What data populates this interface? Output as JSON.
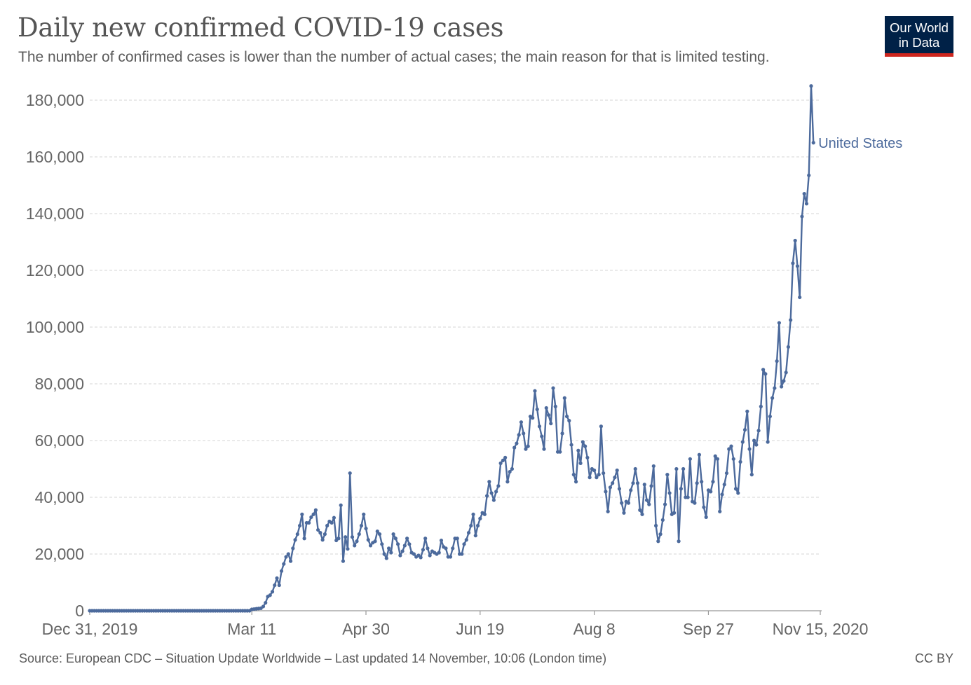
{
  "header": {
    "title": "Daily new confirmed COVID-19 cases",
    "subtitle": "The number of confirmed cases is lower than the number of actual cases; the main reason for that is limited testing."
  },
  "logo": {
    "line1": "Our World",
    "line2": "in Data"
  },
  "footer": {
    "source": "Source: European CDC – Situation Update Worldwide – Last updated 14 November, 10:06 (London time)",
    "license": "CC BY"
  },
  "colors": {
    "series": "#4c6a9c",
    "grid": "#dddddd",
    "logo_bg": "#002147",
    "logo_accent": "#ce261e"
  },
  "chart_data": {
    "type": "line",
    "title": "Daily new confirmed COVID-19 cases",
    "subtitle": "The number of confirmed cases is lower than the number of actual cases; the main reason for that is limited testing.",
    "x_ticks": [
      "Dec 31, 2019",
      "Mar 11",
      "Apr 30",
      "Jun 19",
      "Aug 8",
      "Sep 27",
      "Nov 15, 2020"
    ],
    "x_tick_days": [
      0,
      71,
      121,
      171,
      221,
      271,
      320
    ],
    "y_ticks": [
      0,
      20000,
      40000,
      60000,
      80000,
      100000,
      120000,
      140000,
      160000,
      180000
    ],
    "y_tick_labels": [
      "0",
      "20,000",
      "40,000",
      "60,000",
      "80,000",
      "100,000",
      "120,000",
      "140,000",
      "160,000",
      "180,000"
    ],
    "ylim": [
      0,
      180000
    ],
    "grid": "horizontal dashed",
    "legend": "inline label at line end",
    "series": [
      {
        "name": "United States",
        "x_start": "Dec 31, 2019",
        "x_end": "Nov 14, 2020",
        "values": [
          0,
          0,
          0,
          0,
          0,
          0,
          0,
          0,
          0,
          0,
          0,
          0,
          0,
          0,
          0,
          0,
          0,
          0,
          0,
          0,
          0,
          0,
          1,
          0,
          1,
          1,
          1,
          1,
          1,
          1,
          2,
          1,
          0,
          0,
          0,
          0,
          1,
          0,
          0,
          0,
          0,
          0,
          0,
          0,
          0,
          0,
          0,
          0,
          0,
          0,
          0,
          0,
          0,
          0,
          0,
          0,
          0,
          0,
          0,
          0,
          0,
          0,
          0,
          0,
          0,
          0,
          0,
          0,
          0,
          0,
          0,
          500,
          600,
          700,
          800,
          900,
          1500,
          2800,
          5000,
          5500,
          6700,
          9000,
          11500,
          9000,
          14000,
          16500,
          19000,
          20000,
          17500,
          22000,
          25000,
          27000,
          30000,
          34000,
          25500,
          31000,
          31000,
          33000,
          34000,
          35500,
          28500,
          27500,
          25000,
          27000,
          30000,
          31500,
          31000,
          32800,
          24800,
          25500,
          37200,
          17500,
          26000,
          21800,
          48500,
          26000,
          23000,
          24500,
          27000,
          30000,
          34000,
          29000,
          25000,
          23000,
          24000,
          24500,
          28000,
          27000,
          23500,
          20000,
          18500,
          22000,
          20500,
          27000,
          25500,
          23500,
          19500,
          21000,
          23000,
          25500,
          23500,
          20500,
          20000,
          19000,
          19500,
          18800,
          21500,
          25500,
          22000,
          19500,
          21000,
          20500,
          20000,
          20500,
          24800,
          22500,
          22000,
          19000,
          19000,
          22000,
          25500,
          25500,
          20000,
          20000,
          23500,
          25000,
          27500,
          30000,
          34000,
          26500,
          30000,
          32500,
          34500,
          34000,
          40500,
          45500,
          41500,
          39000,
          42000,
          44000,
          52000,
          53000,
          54000,
          45500,
          49000,
          50000,
          57500,
          59000,
          62000,
          66500,
          62500,
          57000,
          58000,
          68500,
          68000,
          77500,
          71000,
          65000,
          61500,
          57000,
          71500,
          69000,
          66000,
          78500,
          72000,
          56000,
          56000,
          62500,
          75000,
          68500,
          67000,
          58500,
          48000,
          45500,
          56500,
          52000,
          59500,
          58000,
          54000,
          47000,
          50000,
          49500,
          47000,
          48000,
          65000,
          48500,
          42000,
          35000,
          43500,
          45000,
          47000,
          49500,
          43000,
          38000,
          34500,
          38500,
          38000,
          42500,
          45000,
          50000,
          45000,
          35500,
          34000,
          44500,
          39000,
          37500,
          44000,
          51000,
          30000,
          24500,
          27000,
          32000,
          37500,
          48000,
          41500,
          34000,
          34500,
          50000,
          24500,
          43000,
          50000,
          40000,
          40000,
          53500,
          38500,
          38000,
          45000,
          55000,
          45500,
          36500,
          33000,
          42500,
          42000,
          45500,
          54500,
          53500,
          35000,
          41000,
          44500,
          48500,
          57000,
          58000,
          53500,
          43000,
          41500,
          52500,
          59500,
          63800,
          70300,
          57000,
          48000,
          60000,
          58500,
          63500,
          72000,
          85000,
          83500,
          59500,
          68500,
          75000,
          78500,
          88000,
          101500,
          79000,
          81000,
          84000,
          93000,
          102500,
          122500,
          130500,
          121500,
          110500,
          139000,
          147000,
          143500,
          153500,
          185000,
          165000
        ]
      }
    ]
  }
}
